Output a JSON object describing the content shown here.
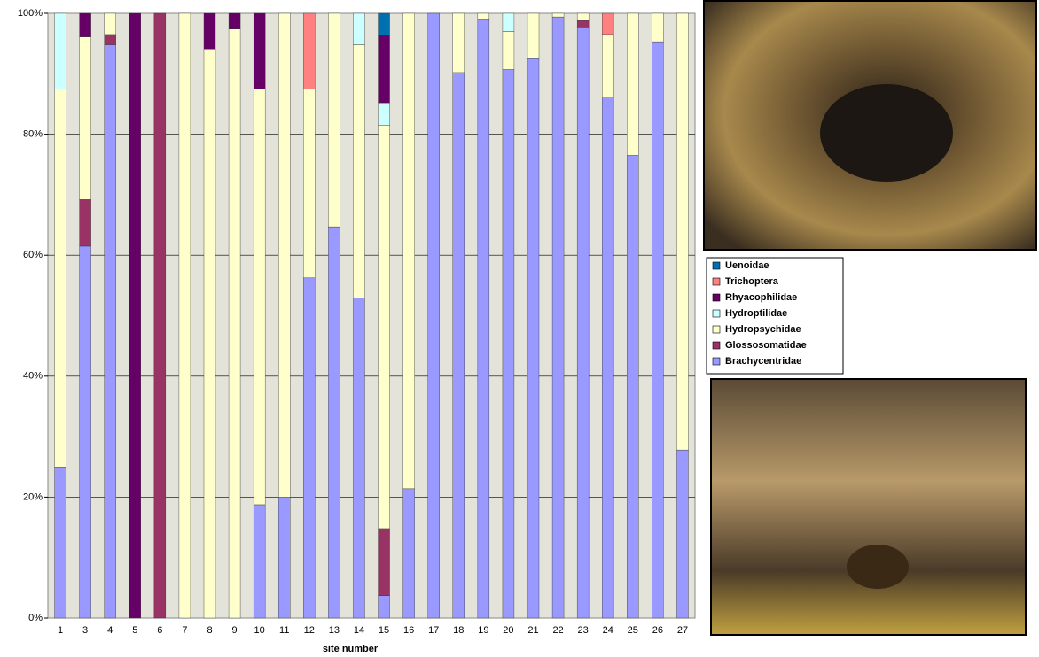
{
  "chart_data": {
    "type": "stacked_bar_100",
    "x_label": "site number",
    "categories": [
      "1",
      "3",
      "4",
      "5",
      "6",
      "7",
      "8",
      "9",
      "10",
      "11",
      "12",
      "13",
      "14",
      "15",
      "16",
      "17",
      "18",
      "19",
      "20",
      "21",
      "22",
      "23",
      "24",
      "25",
      "26",
      "27"
    ],
    "series": [
      {
        "name": "Brachycentridae",
        "color": "#9999ff",
        "values": [
          25,
          61.5,
          94.8,
          0,
          0,
          0,
          0,
          0,
          18.75,
          20,
          56.25,
          64.7,
          52.9,
          3.7,
          21.4,
          100,
          90.2,
          98.9,
          90.7,
          92.5,
          99.4,
          97.6,
          86.2,
          76.5,
          95.3,
          27.8
        ]
      },
      {
        "name": "Glossosomatidae",
        "color": "#993366",
        "values": [
          0,
          7.7,
          1.7,
          0,
          100,
          0,
          0,
          0,
          0,
          0,
          0,
          0,
          0,
          11.1,
          0,
          0,
          0,
          0,
          0,
          0,
          0,
          1.2,
          0,
          0,
          0,
          0
        ]
      },
      {
        "name": "Hydropsychidae",
        "color": "#ffffcc",
        "values": [
          62.5,
          26.9,
          3.5,
          0,
          0,
          100,
          94.1,
          97.4,
          68.75,
          80,
          31.25,
          35.3,
          41.9,
          66.7,
          78.6,
          0,
          9.8,
          1.1,
          6.3,
          7.5,
          0.6,
          1.2,
          10.3,
          23.5,
          4.7,
          72.2
        ]
      },
      {
        "name": "Hydroptilidae",
        "color": "#ccffff",
        "values": [
          12.5,
          0,
          0,
          0,
          0,
          0,
          0,
          0,
          0,
          0,
          0,
          0,
          5.2,
          3.7,
          0,
          0,
          0,
          0,
          3,
          0,
          0,
          0,
          0,
          0,
          0,
          0
        ]
      },
      {
        "name": "Rhyacophilidae",
        "color": "#660066",
        "values": [
          0,
          3.9,
          0,
          100,
          0,
          0,
          5.9,
          2.6,
          12.5,
          0,
          0,
          0,
          0,
          11.1,
          0,
          0,
          0,
          0,
          0,
          0,
          0,
          0,
          0,
          0,
          0,
          0
        ]
      },
      {
        "name": "Trichoptera",
        "color": "#ff8080",
        "values": [
          0,
          0,
          0,
          0,
          0,
          0,
          0,
          0,
          0,
          0,
          12.5,
          0,
          0,
          0,
          0,
          0,
          0,
          0,
          0,
          0,
          0,
          0,
          3.5,
          0,
          0,
          0
        ]
      },
      {
        "name": "Uenoidae",
        "color": "#0070b0",
        "values": [
          0,
          0,
          0,
          0,
          0,
          0,
          0,
          0,
          0,
          0,
          0,
          0,
          0,
          3.7,
          0,
          0,
          0,
          0,
          0,
          0,
          0,
          0,
          0,
          0,
          0,
          0
        ]
      }
    ],
    "ylim": [
      0,
      100
    ],
    "yticks": [
      {
        "value": 0,
        "label": "0%"
      },
      {
        "value": 20,
        "label": "20%"
      },
      {
        "value": 40,
        "label": "40%"
      },
      {
        "value": 60,
        "label": "60%"
      },
      {
        "value": 80,
        "label": "80%"
      },
      {
        "value": 100,
        "label": "100%"
      }
    ],
    "grid": true
  }
}
